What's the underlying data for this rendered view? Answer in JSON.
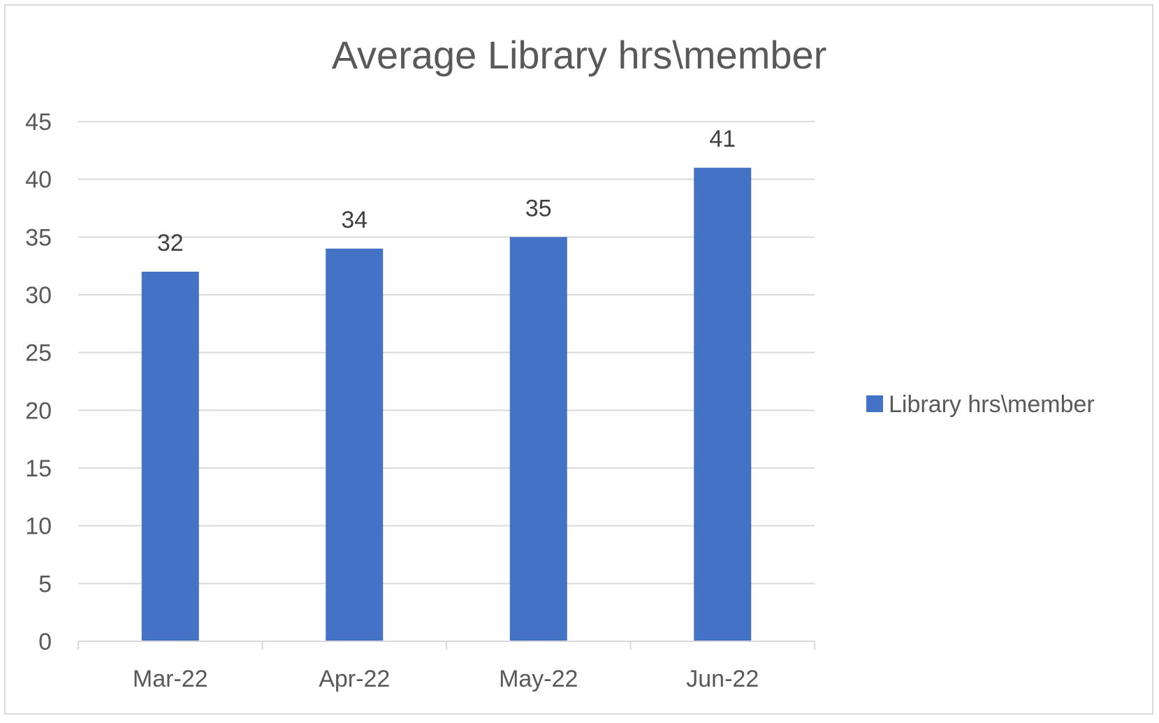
{
  "chart_data": {
    "type": "bar",
    "title": "Average Library hrs\\member",
    "categories": [
      "Mar-22",
      "Apr-22",
      "May-22",
      "Jun-22"
    ],
    "series": [
      {
        "name": "Library hrs\\member",
        "values": [
          32,
          34,
          35,
          41
        ],
        "color": "#4472C4"
      }
    ],
    "ylim": [
      0,
      45
    ],
    "yticks": [
      "0",
      "5",
      "10",
      "15",
      "20",
      "25",
      "30",
      "35",
      "40",
      "45"
    ],
    "ytick_values": [
      0,
      5,
      10,
      15,
      20,
      25,
      30,
      35,
      40,
      45
    ],
    "data_labels": [
      "32",
      "34",
      "35",
      "41"
    ],
    "grid": true,
    "gridline_color": "#d9d9d9",
    "text_color": "#595959",
    "legend_position": "right"
  }
}
